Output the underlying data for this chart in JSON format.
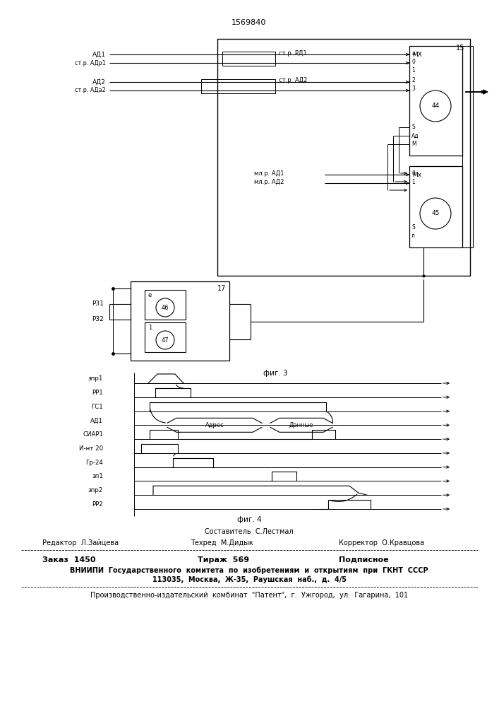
{
  "title": "1569840",
  "bg_color": "#ffffff",
  "line_color": "#000000",
  "text_color": "#000000",
  "timing_labels": [
    "зпр1",
    "РР1",
    "ГС1",
    "АД1",
    "СИАР1",
    "И-нт 20",
    "Гр-24",
    "зп1",
    "зпр2",
    "РР2"
  ],
  "fig3_label": "фиг. 3",
  "fig4_label": "фиг. 4"
}
